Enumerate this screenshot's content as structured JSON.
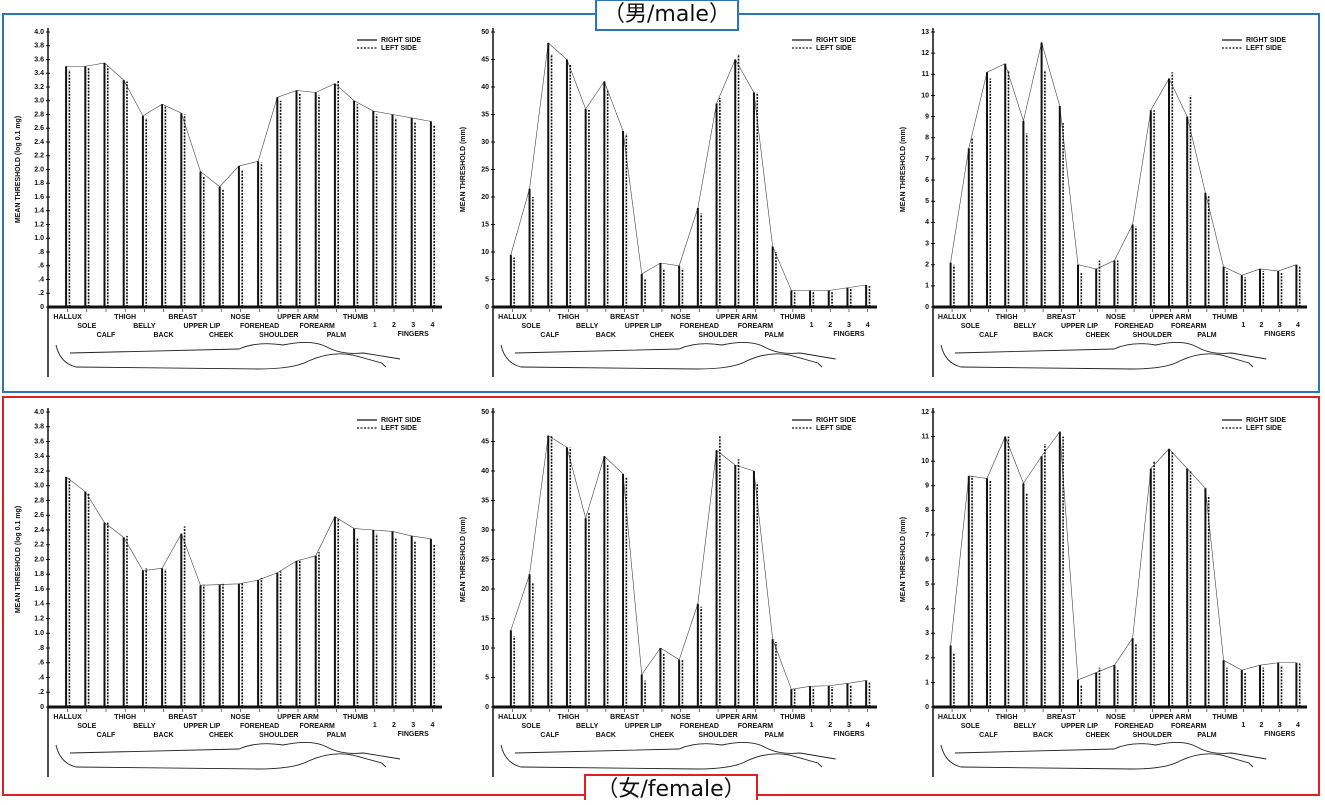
{
  "header": {
    "male_label": "（男/male）",
    "female_label": "（女/female）"
  },
  "chart_data": [
    {
      "type": "bar",
      "y_label": "MEAN THRESHOLD (log 0.1 mg)",
      "group_label": "FINGERS",
      "categories": [
        "HALLUX",
        "SOLE",
        "CALF",
        "THIGH",
        "BELLY",
        "BACK",
        "BREAST",
        "UPPER LIP",
        "CHEEK",
        "NOSE",
        "FOREHEAD",
        "SHOULDER",
        "UPPER ARM",
        "FOREARM",
        "PALM",
        "THUMB",
        "1",
        "2",
        "3",
        "4"
      ],
      "series": [
        {
          "name": "RIGHT SIDE",
          "color": "#111111",
          "style": "solid",
          "values": [
            3.5,
            3.5,
            3.55,
            3.3,
            2.78,
            2.95,
            2.82,
            1.97,
            1.75,
            2.05,
            2.12,
            3.05,
            3.15,
            3.12,
            3.25,
            3.0,
            2.85,
            2.8,
            2.75,
            2.7
          ]
        },
        {
          "name": "LEFT SIDE",
          "color": "#111111",
          "style": "dashed",
          "values": [
            3.45,
            3.48,
            3.5,
            3.28,
            2.75,
            2.92,
            2.8,
            1.9,
            1.72,
            2.0,
            2.1,
            3.0,
            3.1,
            3.08,
            3.3,
            2.95,
            2.8,
            2.75,
            2.7,
            2.65
          ]
        }
      ],
      "ylim": [
        0,
        4.0
      ],
      "yticks": [
        0,
        {
          "value": 0.2,
          "label": ".2"
        },
        {
          "value": 0.4,
          "label": ".4"
        },
        {
          "value": 0.6,
          "label": ".6"
        },
        {
          "value": 0.8,
          "label": ".8"
        },
        {
          "value": 1,
          "label": "1.0"
        },
        1.2,
        1.4,
        1.6,
        1.8,
        {
          "value": 2,
          "label": "2.0"
        },
        2.2,
        2.4,
        2.6,
        2.8,
        {
          "value": 3,
          "label": "3.0"
        },
        3.2,
        3.4,
        3.6,
        3.8,
        {
          "value": 4,
          "label": "4.0"
        }
      ]
    },
    {
      "type": "bar",
      "y_label": "MEAN THRESHOLD (mm)",
      "group_label": "FINGERS",
      "categories": [
        "HALLUX",
        "SOLE",
        "CALF",
        "THIGH",
        "BELLY",
        "BACK",
        "BREAST",
        "UPPER LIP",
        "CHEEK",
        "NOSE",
        "FOREHEAD",
        "SHOULDER",
        "UPPER ARM",
        "FOREARM",
        "PALM",
        "THUMB",
        "1",
        "2",
        "3",
        "4"
      ],
      "series": [
        {
          "name": "RIGHT SIDE",
          "color": "#111111",
          "style": "solid",
          "values": [
            9.5,
            21.5,
            48,
            45,
            36,
            41,
            32,
            6,
            8,
            7.5,
            18,
            37,
            45,
            39,
            11,
            3,
            3,
            3,
            3.5,
            4
          ]
        },
        {
          "name": "LEFT SIDE",
          "color": "#111111",
          "style": "dashed",
          "values": [
            9,
            20,
            46,
            44,
            36,
            39.5,
            31.5,
            5,
            7,
            7,
            17,
            38,
            46,
            39,
            10,
            3,
            2.8,
            2.8,
            3.3,
            3.8
          ]
        }
      ],
      "ylim": [
        0,
        50
      ],
      "yticks": [
        0,
        5,
        10,
        15,
        20,
        25,
        30,
        35,
        40,
        45,
        50
      ]
    },
    {
      "type": "bar",
      "y_label": "MEAN THRESHOLD (mm)",
      "group_label": "FINGERS",
      "categories": [
        "HALLUX",
        "SOLE",
        "CALF",
        "THIGH",
        "BELLY",
        "BACK",
        "BREAST",
        "UPPER LIP",
        "CHEEK",
        "NOSE",
        "FOREHEAD",
        "SHOULDER",
        "UPPER ARM",
        "FOREARM",
        "PALM",
        "THUMB",
        "1",
        "2",
        "3",
        "4"
      ],
      "series": [
        {
          "name": "RIGHT SIDE",
          "color": "#111111",
          "style": "solid",
          "values": [
            2.1,
            7.5,
            11.1,
            11.5,
            8.8,
            12.5,
            9.5,
            2,
            1.8,
            2.2,
            3.9,
            9.3,
            10.8,
            9,
            5.4,
            1.9,
            1.5,
            1.8,
            1.7,
            2
          ]
        },
        {
          "name": "LEFT SIDE",
          "color": "#111111",
          "style": "dashed",
          "values": [
            2,
            8,
            10.8,
            11.2,
            8.2,
            11.2,
            8.7,
            1.6,
            2.2,
            2.2,
            3.8,
            9.3,
            11.1,
            10,
            5.3,
            1.7,
            1.4,
            1.7,
            1.6,
            1.9
          ]
        }
      ],
      "ylim": [
        0,
        13
      ],
      "yticks": [
        0,
        1,
        2,
        3,
        4,
        5,
        6,
        7,
        8,
        9,
        10,
        11,
        12,
        13
      ]
    },
    {
      "type": "bar",
      "y_label": "MEAN THRESHOLD (log 0.1 mg)",
      "group_label": "FINGERS",
      "categories": [
        "HALLUX",
        "SOLE",
        "CALF",
        "THIGH",
        "BELLY",
        "BACK",
        "BREAST",
        "UPPER LIP",
        "CHEEK",
        "NOSE",
        "FOREHEAD",
        "SHOULDER",
        "UPPER ARM",
        "FOREARM",
        "PALM",
        "THUMB",
        "1",
        "2",
        "3",
        "4"
      ],
      "series": [
        {
          "name": "RIGHT SIDE",
          "color": "#111111",
          "style": "solid",
          "values": [
            3.12,
            2.92,
            2.5,
            2.3,
            1.85,
            1.88,
            2.35,
            1.65,
            1.66,
            1.67,
            1.72,
            1.82,
            1.98,
            2.05,
            2.58,
            2.42,
            2.4,
            2.38,
            2.32,
            2.28
          ]
        },
        {
          "name": "LEFT SIDE",
          "color": "#111111",
          "style": "dashed",
          "values": [
            3.1,
            2.9,
            2.5,
            2.32,
            1.88,
            1.87,
            2.45,
            1.66,
            1.67,
            1.68,
            1.75,
            1.84,
            2.0,
            2.1,
            2.55,
            2.3,
            2.35,
            2.3,
            2.25,
            2.2
          ]
        }
      ],
      "ylim": [
        0,
        4.0
      ],
      "yticks": [
        0,
        {
          "value": 0.2,
          "label": ".2"
        },
        {
          "value": 0.4,
          "label": ".4"
        },
        {
          "value": 0.6,
          "label": ".6"
        },
        {
          "value": 0.8,
          "label": ".8"
        },
        {
          "value": 1,
          "label": "1.0"
        },
        1.2,
        1.4,
        1.6,
        1.8,
        {
          "value": 2,
          "label": "2.0"
        },
        2.2,
        2.4,
        2.6,
        2.8,
        {
          "value": 3,
          "label": "3.0"
        },
        3.2,
        3.4,
        3.6,
        3.8,
        {
          "value": 4,
          "label": "4.0"
        }
      ]
    },
    {
      "type": "bar",
      "y_label": "MEAN THRESHOLD (mm)",
      "group_label": "FINGERS",
      "categories": [
        "HALLUX",
        "SOLE",
        "CALF",
        "THIGH",
        "BELLY",
        "BACK",
        "BREAST",
        "UPPER LIP",
        "CHEEK",
        "NOSE",
        "FOREHEAD",
        "SHOULDER",
        "UPPER ARM",
        "FOREARM",
        "PALM",
        "THUMB",
        "1",
        "2",
        "3",
        "4"
      ],
      "series": [
        {
          "name": "RIGHT SIDE",
          "color": "#111111",
          "style": "solid",
          "values": [
            13,
            22.5,
            46,
            44,
            32,
            42.5,
            39.5,
            5.5,
            10,
            8,
            17.5,
            43.5,
            41,
            40,
            11.5,
            3,
            3.5,
            3.6,
            4,
            4.5
          ]
        },
        {
          "name": "LEFT SIDE",
          "color": "#111111",
          "style": "dashed",
          "values": [
            12,
            21,
            46,
            44,
            33,
            41,
            39,
            4.5,
            9,
            8,
            17,
            46,
            42,
            38,
            11,
            3,
            3.3,
            3.4,
            3.8,
            4.3
          ]
        }
      ],
      "ylim": [
        0,
        50
      ],
      "yticks": [
        0,
        5,
        10,
        15,
        20,
        25,
        30,
        35,
        40,
        45,
        50
      ]
    },
    {
      "type": "bar",
      "y_label": "MEAN THRESHOLD (mm)",
      "group_label": "FINGERS",
      "categories": [
        "HALLUX",
        "SOLE",
        "CALF",
        "THIGH",
        "BELLY",
        "BACK",
        "BREAST",
        "UPPER LIP",
        "CHEEK",
        "NOSE",
        "FOREHEAD",
        "SHOULDER",
        "UPPER ARM",
        "FOREARM",
        "PALM",
        "THUMB",
        "1",
        "2",
        "3",
        "4"
      ],
      "series": [
        {
          "name": "RIGHT SIDE",
          "color": "#111111",
          "style": "solid",
          "values": [
            2.5,
            9.4,
            9.3,
            11,
            9.1,
            10.2,
            11.2,
            1.1,
            1.4,
            1.7,
            2.8,
            9.7,
            10.5,
            9.7,
            8.9,
            1.9,
            1.5,
            1.7,
            1.8,
            1.8
          ]
        },
        {
          "name": "LEFT SIDE",
          "color": "#111111",
          "style": "dashed",
          "values": [
            2.2,
            9.4,
            9.2,
            11,
            8.7,
            10.7,
            11,
            0.9,
            1.6,
            1.5,
            2.6,
            10,
            10.4,
            9.6,
            8.6,
            1.6,
            1.4,
            1.6,
            1.7,
            1.8
          ]
        }
      ],
      "ylim": [
        0,
        12
      ],
      "yticks": [
        0,
        1,
        2,
        3,
        4,
        5,
        6,
        7,
        8,
        9,
        10,
        11,
        12
      ]
    }
  ]
}
